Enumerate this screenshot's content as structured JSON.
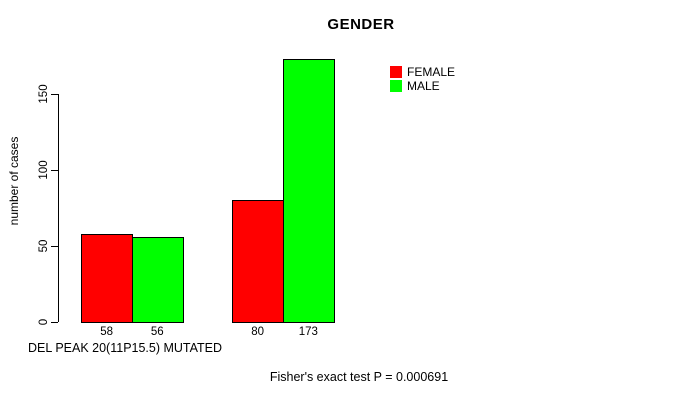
{
  "title": "GENDER",
  "y_axis": {
    "label": "number of cases",
    "ticks": [
      "0",
      "50",
      "100",
      "150"
    ]
  },
  "x_axis": {
    "label": "DEL PEAK 20(11P15.5) MUTATED"
  },
  "footer": "Fisher's exact test P = 0.000691",
  "legend": {
    "items": [
      {
        "label": "FEMALE",
        "color": "#FF0000"
      },
      {
        "label": "MALE",
        "color": "#00FF00"
      }
    ]
  },
  "chart_data": {
    "type": "bar",
    "title": "GENDER",
    "xlabel": "DEL PEAK 20(11P15.5) MUTATED",
    "ylabel": "number of cases",
    "ylim": [
      0,
      175
    ],
    "y_ticks": [
      0,
      50,
      100,
      150
    ],
    "grid": false,
    "legend_position": "top-right",
    "n_groups": 2,
    "series": [
      {
        "name": "FEMALE",
        "color": "#FF0000",
        "values": [
          58,
          80
        ]
      },
      {
        "name": "MALE",
        "color": "#00FF00",
        "values": [
          56,
          173
        ]
      }
    ],
    "bar_value_labels": [
      [
        "58",
        "56"
      ],
      [
        "80",
        "173"
      ]
    ],
    "annotation": "Fisher's exact test P = 0.000691"
  }
}
